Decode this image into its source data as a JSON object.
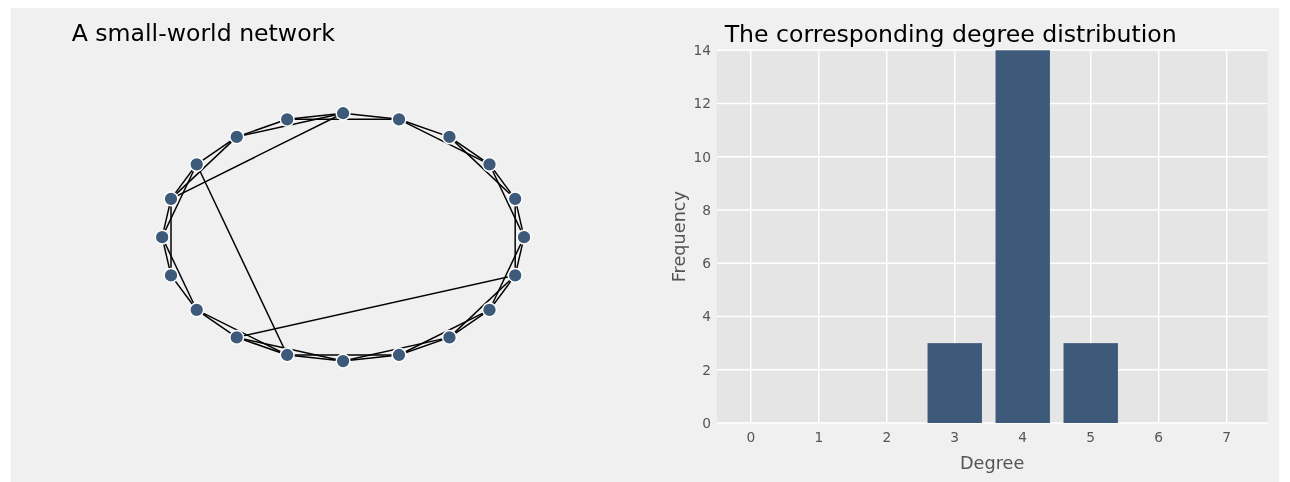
{
  "chart_data": [
    {
      "type": "other",
      "title": "A small-world network"
    },
    {
      "type": "bar",
      "title": "The corresponding degree distribution",
      "xlabel": "Degree",
      "ylabel": "Frequency",
      "x": [
        0,
        1,
        2,
        3,
        4,
        5,
        6,
        7
      ],
      "values": [
        0,
        0,
        0,
        3,
        14,
        3,
        0,
        0
      ],
      "color": "#3d5a7a",
      "xlim": [
        -0.5,
        7.6
      ],
      "xticks": [
        0,
        1,
        2,
        3,
        4,
        5,
        6,
        7
      ],
      "ylim": [
        0,
        14
      ],
      "yticks": [
        0,
        2,
        4,
        6,
        8,
        10,
        12,
        14
      ],
      "grid": true
    }
  ]
}
